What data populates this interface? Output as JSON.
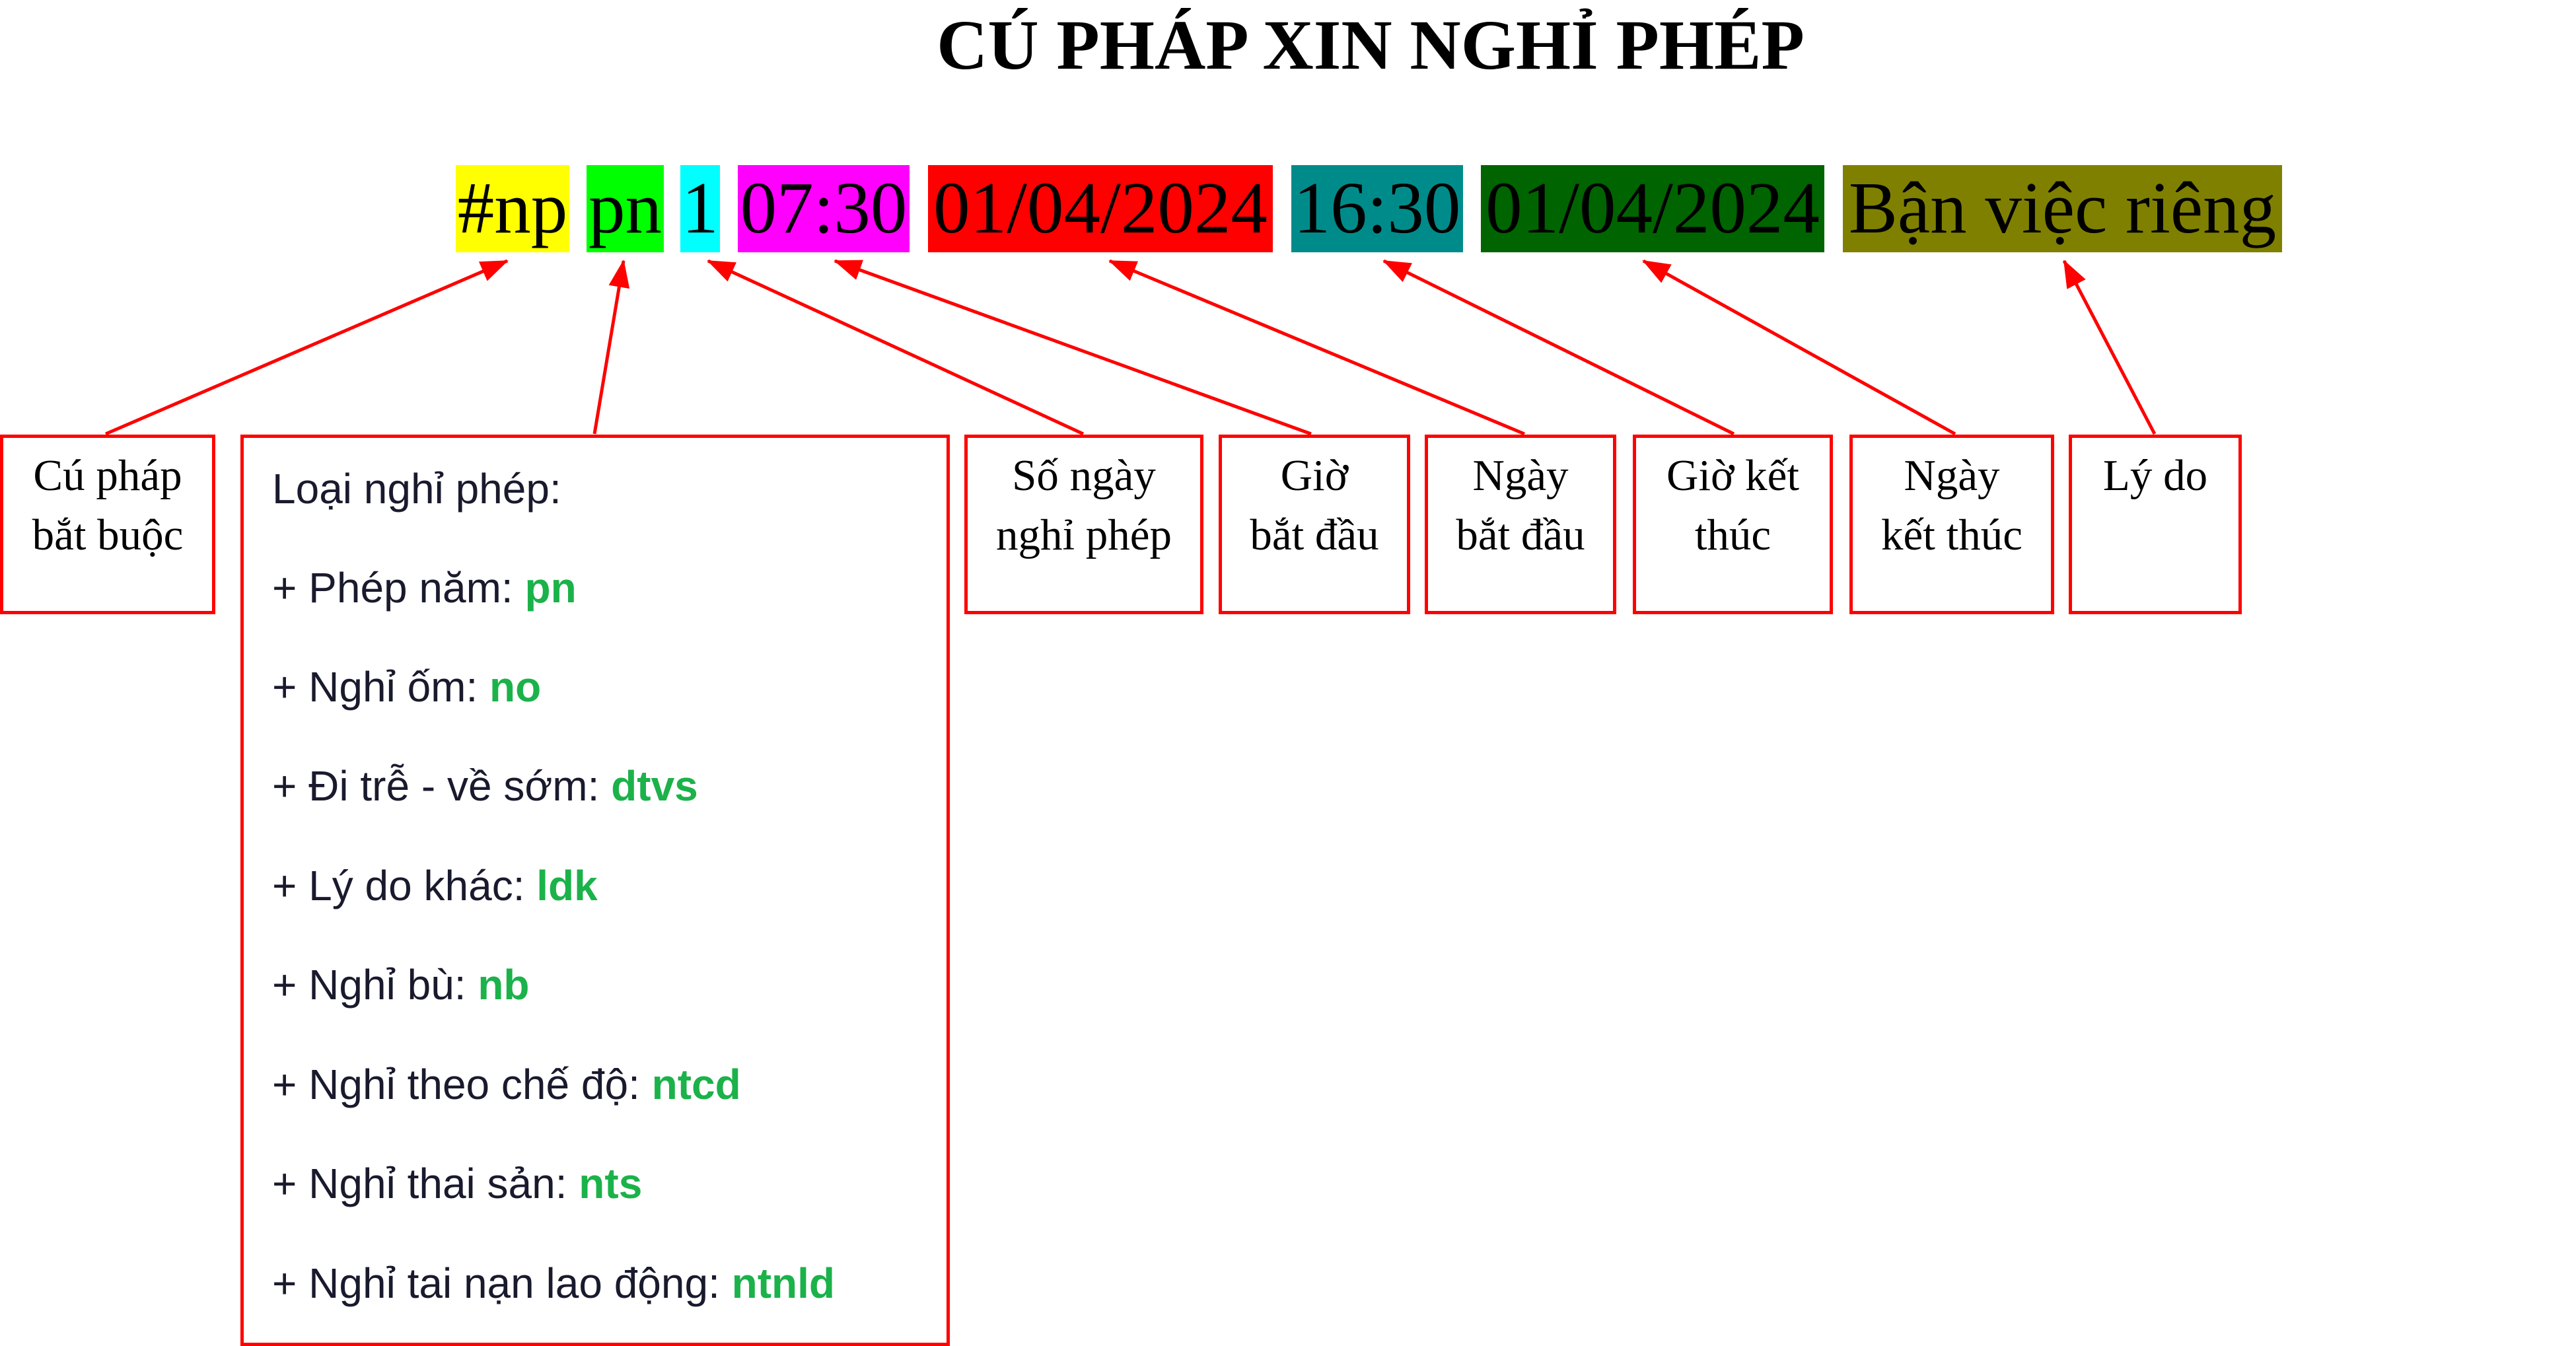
{
  "title": "CÚ PHÁP XIN NGHỈ PHÉP",
  "syntax": {
    "tokens": [
      {
        "text": "#np",
        "color": "#ffff00"
      },
      {
        "text": "pn",
        "color": "#00ff00"
      },
      {
        "text": "1",
        "color": "#00ffff"
      },
      {
        "text": "07:30",
        "color": "#ff00ff"
      },
      {
        "text": "01/04/2024",
        "color": "#ff0000"
      },
      {
        "text": "16:30",
        "color": "#008b8b"
      },
      {
        "text": "01/04/2024",
        "color": "#006400"
      },
      {
        "text": "Bận việc riêng",
        "color": "#808000"
      }
    ]
  },
  "labels": {
    "required": [
      "Cú pháp",
      "bắt buộc"
    ],
    "days": [
      "Số ngày",
      "nghỉ phép"
    ],
    "start_time": [
      "Giờ",
      "bắt đầu"
    ],
    "start_date": [
      "Ngày",
      "bắt đầu"
    ],
    "end_time": [
      "Giờ kết",
      "thúc"
    ],
    "end_date": [
      "Ngày",
      "kết thúc"
    ],
    "reason": [
      "Lý do"
    ]
  },
  "leave_types": {
    "heading": "Loại nghỉ phép:",
    "items": [
      {
        "label": "+ Phép năm: ",
        "code": "pn"
      },
      {
        "label": "+ Nghỉ ốm: ",
        "code": "no"
      },
      {
        "label": "+ Đi trễ - về sớm: ",
        "code": "dtvs"
      },
      {
        "label": "+ Lý do khác: ",
        "code": "ldk"
      },
      {
        "label": "+ Nghỉ bù: ",
        "code": "nb"
      },
      {
        "label": "+ Nghỉ theo chế độ: ",
        "code": "ntcd"
      },
      {
        "label": "+ Nghỉ thai sản: ",
        "code": "nts"
      },
      {
        "label": "+ Nghỉ tai nạn lao động: ",
        "code": "ntnld"
      }
    ]
  },
  "colors": {
    "arrow": "#ff0000",
    "border": "#ff0000",
    "code_text": "#1bb24a"
  }
}
